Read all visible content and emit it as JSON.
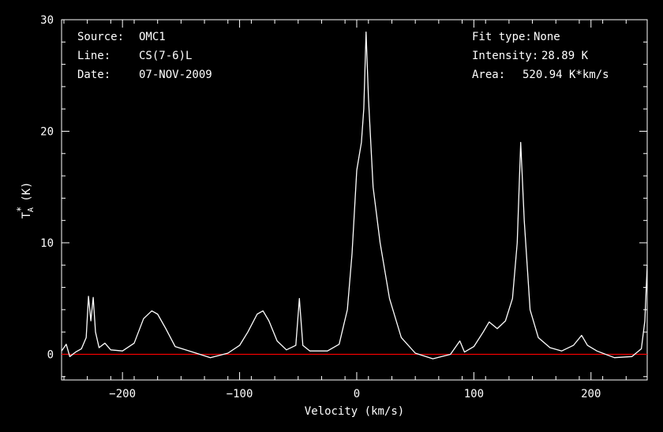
{
  "chart_data": {
    "type": "line",
    "xlabel": "Velocity (km/s)",
    "ylabel": {
      "base": "T",
      "sub": "A",
      "sup": "*",
      "unit": "(K)"
    },
    "xlim": [
      -252,
      248
    ],
    "ylim": [
      -2.3,
      30
    ],
    "xticks": [
      -200,
      -100,
      0,
      100,
      200
    ],
    "yticks": [
      0,
      10,
      20,
      30
    ],
    "grid": false,
    "baseline": 0,
    "colors": {
      "background": "#000000",
      "trace": "#ffffff",
      "baseline": "#ff0000",
      "axes": "#ffffff"
    },
    "info_left": [
      {
        "key": "Source:",
        "value": "OMC1"
      },
      {
        "key": "Line:",
        "value": "CS(7-6)L"
      },
      {
        "key": "Date:",
        "value": "07-NOV-2009"
      }
    ],
    "info_right": [
      {
        "key": "Fit type:",
        "value": "None"
      },
      {
        "key": "Intensity:",
        "value": "28.89 K"
      },
      {
        "key": "Area:",
        "value": "520.94 K*km/s"
      }
    ],
    "series": [
      {
        "values": [
          {
            "x": -252,
            "y": 0.3
          },
          {
            "x": -248,
            "y": 0.9
          },
          {
            "x": -245,
            "y": -0.2
          },
          {
            "x": -240,
            "y": 0.2
          },
          {
            "x": -235,
            "y": 0.5
          },
          {
            "x": -231,
            "y": 1.5
          },
          {
            "x": -229,
            "y": 5.2
          },
          {
            "x": -227,
            "y": 3.0
          },
          {
            "x": -225,
            "y": 5.1
          },
          {
            "x": -223,
            "y": 2.0
          },
          {
            "x": -220,
            "y": 0.6
          },
          {
            "x": -215,
            "y": 1.0
          },
          {
            "x": -210,
            "y": 0.4
          },
          {
            "x": -200,
            "y": 0.3
          },
          {
            "x": -190,
            "y": 1.0
          },
          {
            "x": -182,
            "y": 3.2
          },
          {
            "x": -175,
            "y": 3.9
          },
          {
            "x": -170,
            "y": 3.6
          },
          {
            "x": -163,
            "y": 2.3
          },
          {
            "x": -155,
            "y": 0.7
          },
          {
            "x": -140,
            "y": 0.2
          },
          {
            "x": -125,
            "y": -0.3
          },
          {
            "x": -110,
            "y": 0.1
          },
          {
            "x": -100,
            "y": 0.8
          },
          {
            "x": -93,
            "y": 2.0
          },
          {
            "x": -85,
            "y": 3.6
          },
          {
            "x": -80,
            "y": 3.9
          },
          {
            "x": -75,
            "y": 3.0
          },
          {
            "x": -68,
            "y": 1.2
          },
          {
            "x": -60,
            "y": 0.4
          },
          {
            "x": -52,
            "y": 0.8
          },
          {
            "x": -49,
            "y": 5.0
          },
          {
            "x": -46,
            "y": 0.8
          },
          {
            "x": -40,
            "y": 0.3
          },
          {
            "x": -25,
            "y": 0.3
          },
          {
            "x": -15,
            "y": 0.9
          },
          {
            "x": -8,
            "y": 4.0
          },
          {
            "x": -4,
            "y": 9.0
          },
          {
            "x": 0,
            "y": 16.5
          },
          {
            "x": 4,
            "y": 19.0
          },
          {
            "x": 6,
            "y": 22.0
          },
          {
            "x": 8,
            "y": 28.89
          },
          {
            "x": 10,
            "y": 23.0
          },
          {
            "x": 14,
            "y": 15.0
          },
          {
            "x": 20,
            "y": 10.0
          },
          {
            "x": 28,
            "y": 5.0
          },
          {
            "x": 38,
            "y": 1.5
          },
          {
            "x": 50,
            "y": 0.1
          },
          {
            "x": 65,
            "y": -0.4
          },
          {
            "x": 80,
            "y": 0.0
          },
          {
            "x": 88,
            "y": 1.2
          },
          {
            "x": 92,
            "y": 0.2
          },
          {
            "x": 100,
            "y": 0.7
          },
          {
            "x": 108,
            "y": 2.0
          },
          {
            "x": 113,
            "y": 2.9
          },
          {
            "x": 120,
            "y": 2.3
          },
          {
            "x": 127,
            "y": 3.0
          },
          {
            "x": 133,
            "y": 5.0
          },
          {
            "x": 137,
            "y": 10.0
          },
          {
            "x": 140,
            "y": 19.0
          },
          {
            "x": 143,
            "y": 12.0
          },
          {
            "x": 148,
            "y": 4.0
          },
          {
            "x": 155,
            "y": 1.5
          },
          {
            "x": 165,
            "y": 0.6
          },
          {
            "x": 175,
            "y": 0.3
          },
          {
            "x": 185,
            "y": 0.8
          },
          {
            "x": 192,
            "y": 1.7
          },
          {
            "x": 197,
            "y": 0.8
          },
          {
            "x": 205,
            "y": 0.3
          },
          {
            "x": 220,
            "y": -0.3
          },
          {
            "x": 235,
            "y": -0.2
          },
          {
            "x": 243,
            "y": 0.5
          },
          {
            "x": 246,
            "y": 3.0
          },
          {
            "x": 248,
            "y": 8.0
          }
        ]
      }
    ]
  }
}
